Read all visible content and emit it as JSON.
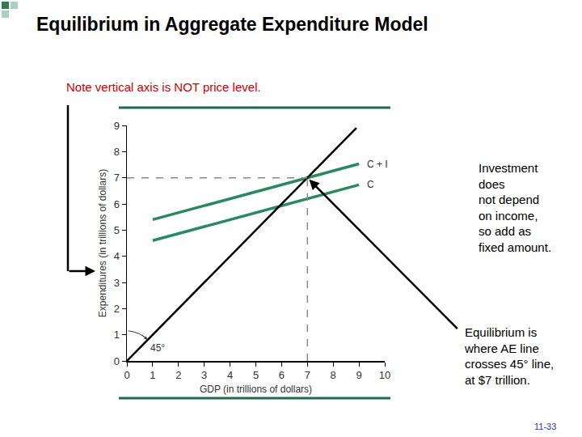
{
  "chart_data": {
    "type": "line",
    "title": "Equilibrium in Aggregate Expenditure Model",
    "note": "Note vertical axis is NOT price level.",
    "xlabel": "GDP (in trillions of dollars)",
    "ylabel": "Expenditures (in trillions of dollars)",
    "xlim": [
      0,
      10
    ],
    "xticks": [
      0,
      1,
      2,
      3,
      4,
      5,
      6,
      7,
      8,
      9,
      10
    ],
    "ylim": [
      0,
      9
    ],
    "yticks": [
      0,
      1,
      2,
      3,
      4,
      5,
      6,
      7,
      8,
      9
    ],
    "grid": false,
    "series": [
      {
        "name": "C + I",
        "color": "#2a8a5e",
        "x": [
          1,
          9
        ],
        "values": [
          5.4,
          7.53
        ]
      },
      {
        "name": "C",
        "color": "#2a8a5e",
        "x": [
          1,
          9
        ],
        "values": [
          4.6,
          6.73
        ]
      },
      {
        "color": "#000000",
        "x": [
          0,
          8.9
        ],
        "values": [
          0,
          8.9
        ]
      }
    ],
    "angle_label": "45°",
    "equilibrium": {
      "x": 7,
      "y": 7
    },
    "annotations": [
      {
        "lines": [
          "Investment",
          "does",
          "not depend",
          "on income,",
          "so add as",
          "fixed amount."
        ]
      },
      {
        "lines": [
          "Equilibrium is",
          "where AE line",
          "crosses 45° line,",
          "at $7 trillion."
        ]
      }
    ],
    "page_label": "11-33"
  }
}
